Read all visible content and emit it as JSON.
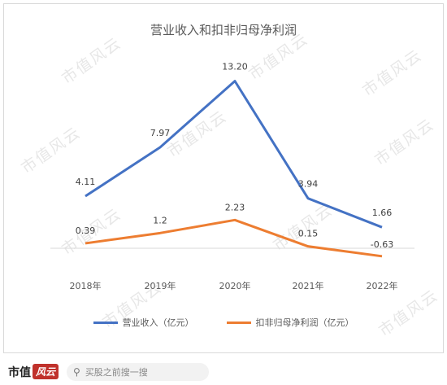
{
  "chart_data": {
    "type": "line",
    "title": "营业收入和扣非归母净利润",
    "categories": [
      "2018年",
      "2019年",
      "2020年",
      "2021年",
      "2022年"
    ],
    "series": [
      {
        "name": "营业收入（亿元）",
        "color": "#4472C4",
        "values": [
          4.11,
          7.97,
          13.2,
          3.94,
          1.66
        ],
        "labels": [
          "4.11",
          "7.97",
          "13.20",
          "3.94",
          "1.66"
        ]
      },
      {
        "name": "扣非归母净利润（亿元）",
        "color": "#ED7D31",
        "values": [
          0.39,
          1.2,
          2.23,
          0.15,
          -0.63
        ],
        "labels": [
          "0.39",
          "1.2",
          "2.23",
          "0.15",
          "-0.63"
        ]
      }
    ],
    "grid": false,
    "legend_position": "bottom"
  },
  "watermark": "市值风云",
  "footer": {
    "brand": "市值",
    "brand_script": "风云",
    "search_icon": "search-icon",
    "search_placeholder": "买股之前搜一搜"
  }
}
